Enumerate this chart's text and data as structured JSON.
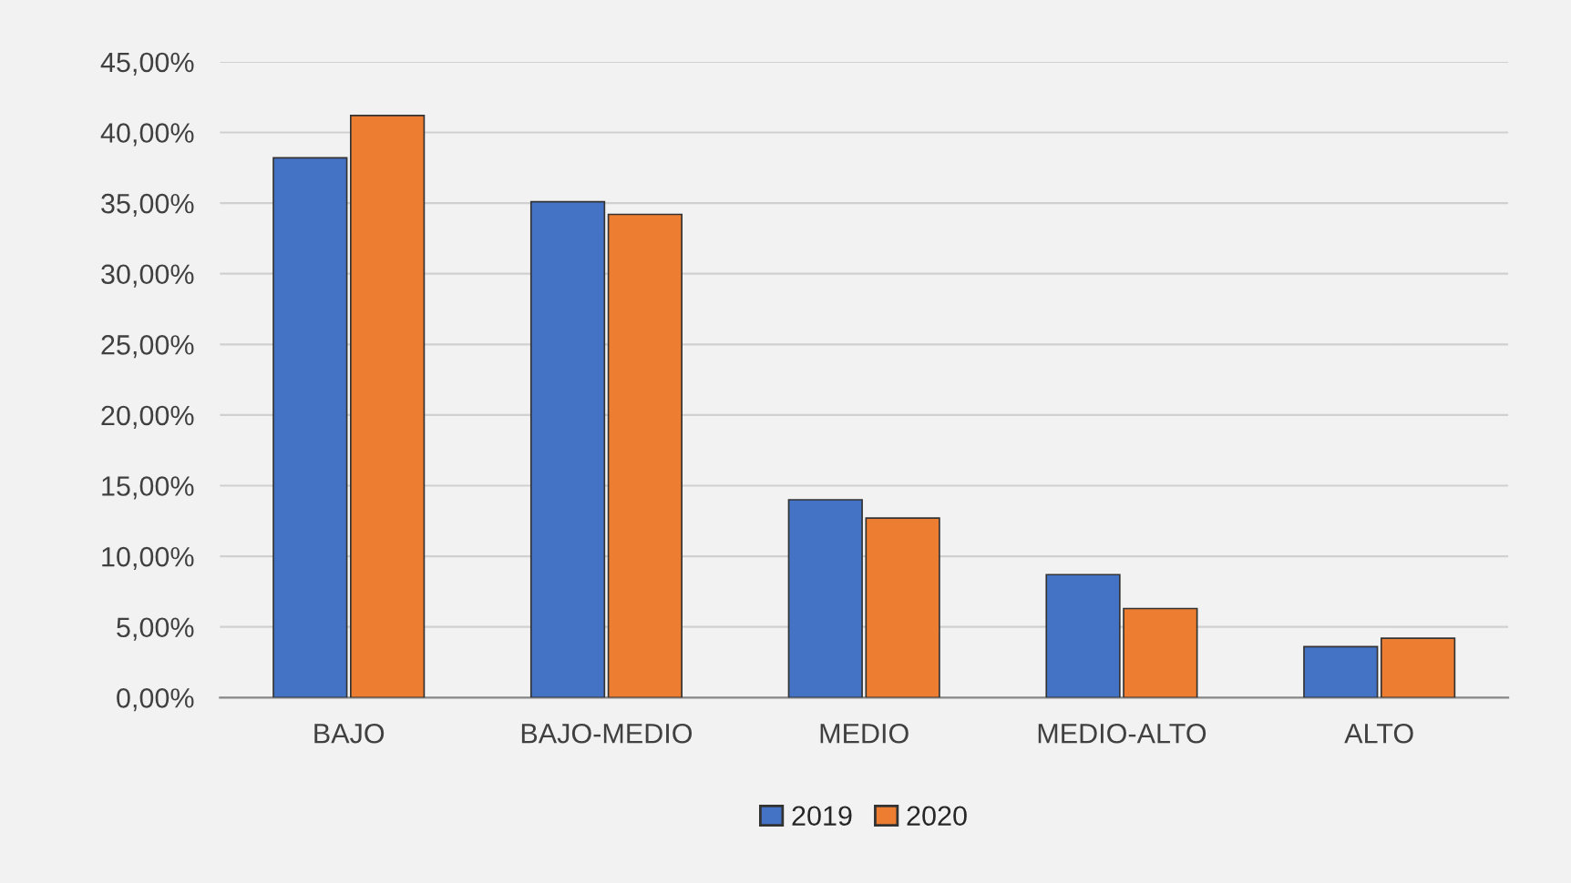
{
  "chart_data": {
    "type": "bar",
    "categories": [
      "BAJO",
      "BAJO-MEDIO",
      "MEDIO",
      "MEDIO-ALTO",
      "ALTO"
    ],
    "series": [
      {
        "name": "2019",
        "color": "#4472c4",
        "values": [
          38.2,
          35.1,
          14.0,
          8.7,
          3.6
        ]
      },
      {
        "name": "2020",
        "color": "#ed7d31",
        "values": [
          41.2,
          34.2,
          12.7,
          6.3,
          4.2
        ]
      }
    ],
    "ylim": [
      0,
      45
    ],
    "yticks": [
      {
        "value": 0,
        "label": "0,00%"
      },
      {
        "value": 5,
        "label": "5,00%"
      },
      {
        "value": 10,
        "label": "10,00%"
      },
      {
        "value": 15,
        "label": "15,00%"
      },
      {
        "value": 20,
        "label": "20,00%"
      },
      {
        "value": 25,
        "label": "25,00%"
      },
      {
        "value": 30,
        "label": "30,00%"
      },
      {
        "value": 35,
        "label": "35,00%"
      },
      {
        "value": 40,
        "label": "40,00%"
      },
      {
        "value": 45,
        "label": "45,00%"
      }
    ],
    "grid": "y",
    "legend": "bottom"
  }
}
